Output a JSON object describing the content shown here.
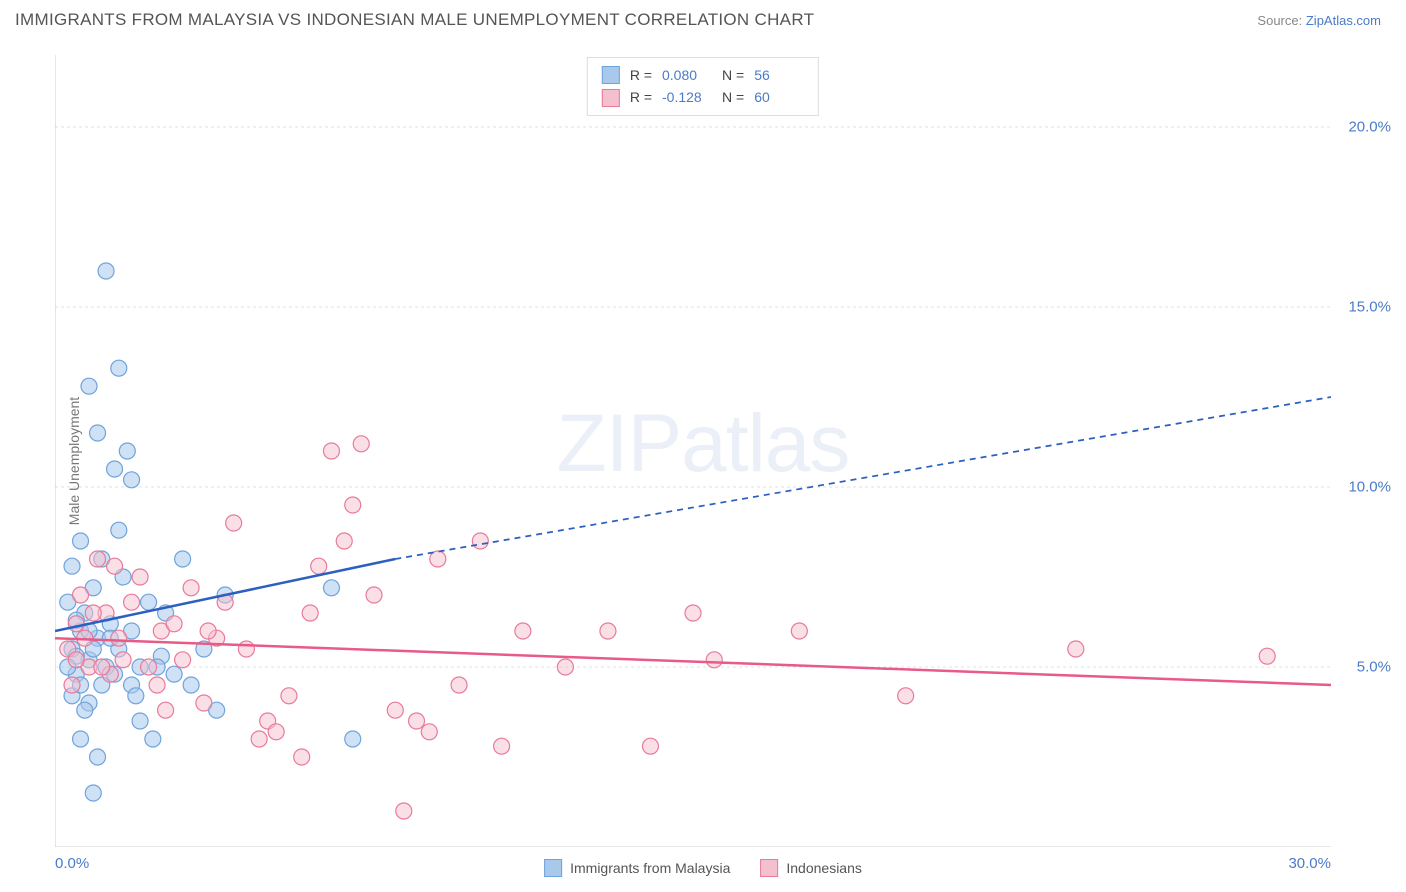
{
  "title": "IMMIGRANTS FROM MALAYSIA VS INDONESIAN MALE UNEMPLOYMENT CORRELATION CHART",
  "source_label": "Source:",
  "source_name": "ZipAtlas.com",
  "watermark": "ZIPatlas",
  "ylabel": "Male Unemployment",
  "chart": {
    "type": "scatter",
    "xlim": [
      0,
      30
    ],
    "ylim": [
      0,
      22
    ],
    "yticks": [
      5,
      10,
      15,
      20
    ],
    "ytick_labels": [
      "5.0%",
      "10.0%",
      "15.0%",
      "20.0%"
    ],
    "x_min_label": "0.0%",
    "x_max_label": "30.0%",
    "background_color": "#ffffff",
    "grid_color": "#e0e0e0",
    "axis_color": "#cccccc",
    "series": [
      {
        "name": "Immigrants from Malaysia",
        "color_fill": "#a8c8ec",
        "color_stroke": "#6fa3dc",
        "swatch_fill": "#a8c8ec",
        "swatch_stroke": "#6fa3dc",
        "marker_radius": 8,
        "marker_opacity": 0.55,
        "r": "0.080",
        "n": "56",
        "trend": {
          "x1": 0,
          "y1": 6.0,
          "x2": 8,
          "y2": 8.0,
          "x2_ext": 30,
          "y2_ext": 12.5,
          "color": "#2b5fc0",
          "width": 2.5
        },
        "points": [
          [
            0.4,
            5.5
          ],
          [
            0.6,
            6.0
          ],
          [
            0.8,
            5.2
          ],
          [
            1.0,
            5.8
          ],
          [
            1.2,
            5.0
          ],
          [
            0.5,
            4.8
          ],
          [
            0.7,
            6.5
          ],
          [
            1.5,
            5.5
          ],
          [
            1.8,
            4.5
          ],
          [
            0.3,
            6.8
          ],
          [
            0.9,
            7.2
          ],
          [
            1.1,
            8.0
          ],
          [
            0.6,
            8.5
          ],
          [
            1.3,
            6.2
          ],
          [
            2.0,
            5.0
          ],
          [
            2.2,
            6.8
          ],
          [
            0.4,
            4.2
          ],
          [
            0.8,
            4.0
          ],
          [
            1.6,
            7.5
          ],
          [
            2.5,
            5.3
          ],
          [
            3.0,
            8.0
          ],
          [
            1.4,
            4.8
          ],
          [
            0.5,
            5.3
          ],
          [
            1.9,
            4.2
          ],
          [
            3.5,
            5.5
          ],
          [
            0.7,
            3.8
          ],
          [
            2.8,
            4.8
          ],
          [
            1.2,
            16.0
          ],
          [
            1.5,
            13.3
          ],
          [
            0.8,
            12.8
          ],
          [
            1.0,
            11.5
          ],
          [
            1.4,
            10.5
          ],
          [
            1.8,
            10.2
          ],
          [
            0.6,
            3.0
          ],
          [
            1.0,
            2.5
          ],
          [
            3.2,
            4.5
          ],
          [
            2.0,
            3.5
          ],
          [
            0.9,
            1.5
          ],
          [
            3.8,
            3.8
          ],
          [
            0.4,
            7.8
          ],
          [
            1.7,
            11.0
          ],
          [
            2.3,
            3.0
          ],
          [
            0.3,
            5.0
          ],
          [
            0.5,
            6.3
          ],
          [
            1.1,
            4.5
          ],
          [
            4.0,
            7.0
          ],
          [
            2.6,
            6.5
          ],
          [
            1.3,
            5.8
          ],
          [
            0.8,
            6.0
          ],
          [
            6.5,
            7.2
          ],
          [
            7.0,
            3.0
          ],
          [
            1.5,
            8.8
          ],
          [
            0.6,
            4.5
          ],
          [
            2.4,
            5.0
          ],
          [
            1.8,
            6.0
          ],
          [
            0.9,
            5.5
          ]
        ]
      },
      {
        "name": "Indonesians",
        "color_fill": "#f5c0ce",
        "color_stroke": "#e87a9a",
        "swatch_fill": "#f5c0ce",
        "swatch_stroke": "#e87a9a",
        "marker_radius": 8,
        "marker_opacity": 0.5,
        "r": "-0.128",
        "n": "60",
        "trend": {
          "x1": 0,
          "y1": 5.8,
          "x2": 30,
          "y2": 4.5,
          "color": "#e85a88",
          "width": 2.5
        },
        "points": [
          [
            0.3,
            5.5
          ],
          [
            0.5,
            6.2
          ],
          [
            0.8,
            5.0
          ],
          [
            1.2,
            6.5
          ],
          [
            1.5,
            5.8
          ],
          [
            2.0,
            7.5
          ],
          [
            2.5,
            6.0
          ],
          [
            3.0,
            5.2
          ],
          [
            3.5,
            4.0
          ],
          [
            4.0,
            6.8
          ],
          [
            4.5,
            5.5
          ],
          [
            5.0,
            3.5
          ],
          [
            5.5,
            4.2
          ],
          [
            6.0,
            6.5
          ],
          [
            6.5,
            11.0
          ],
          [
            7.0,
            9.5
          ],
          [
            7.2,
            11.2
          ],
          [
            7.5,
            7.0
          ],
          [
            8.0,
            3.8
          ],
          [
            8.5,
            3.5
          ],
          [
            9.0,
            8.0
          ],
          [
            9.5,
            4.5
          ],
          [
            10.0,
            8.5
          ],
          [
            10.5,
            2.8
          ],
          [
            11.0,
            6.0
          ],
          [
            12.0,
            5.0
          ],
          [
            13.0,
            6.0
          ],
          [
            14.0,
            2.8
          ],
          [
            15.0,
            6.5
          ],
          [
            15.5,
            5.2
          ],
          [
            17.5,
            6.0
          ],
          [
            20.0,
            4.2
          ],
          [
            24.0,
            5.5
          ],
          [
            28.5,
            5.3
          ],
          [
            0.4,
            4.5
          ],
          [
            0.6,
            7.0
          ],
          [
            1.0,
            8.0
          ],
          [
            1.3,
            4.8
          ],
          [
            1.8,
            6.8
          ],
          [
            2.2,
            5.0
          ],
          [
            2.8,
            6.2
          ],
          [
            3.2,
            7.2
          ],
          [
            3.8,
            5.8
          ],
          [
            0.7,
            5.8
          ],
          [
            1.6,
            5.2
          ],
          [
            0.9,
            6.5
          ],
          [
            4.8,
            3.0
          ],
          [
            5.8,
            2.5
          ],
          [
            8.8,
            3.2
          ],
          [
            8.2,
            1.0
          ],
          [
            4.2,
            9.0
          ],
          [
            5.2,
            3.2
          ],
          [
            1.4,
            7.8
          ],
          [
            2.4,
            4.5
          ],
          [
            6.8,
            8.5
          ],
          [
            3.6,
            6.0
          ],
          [
            1.1,
            5.0
          ],
          [
            0.5,
            5.2
          ],
          [
            2.6,
            3.8
          ],
          [
            6.2,
            7.8
          ]
        ]
      }
    ]
  },
  "legend_labels": {
    "r": "R =",
    "n": "N ="
  }
}
